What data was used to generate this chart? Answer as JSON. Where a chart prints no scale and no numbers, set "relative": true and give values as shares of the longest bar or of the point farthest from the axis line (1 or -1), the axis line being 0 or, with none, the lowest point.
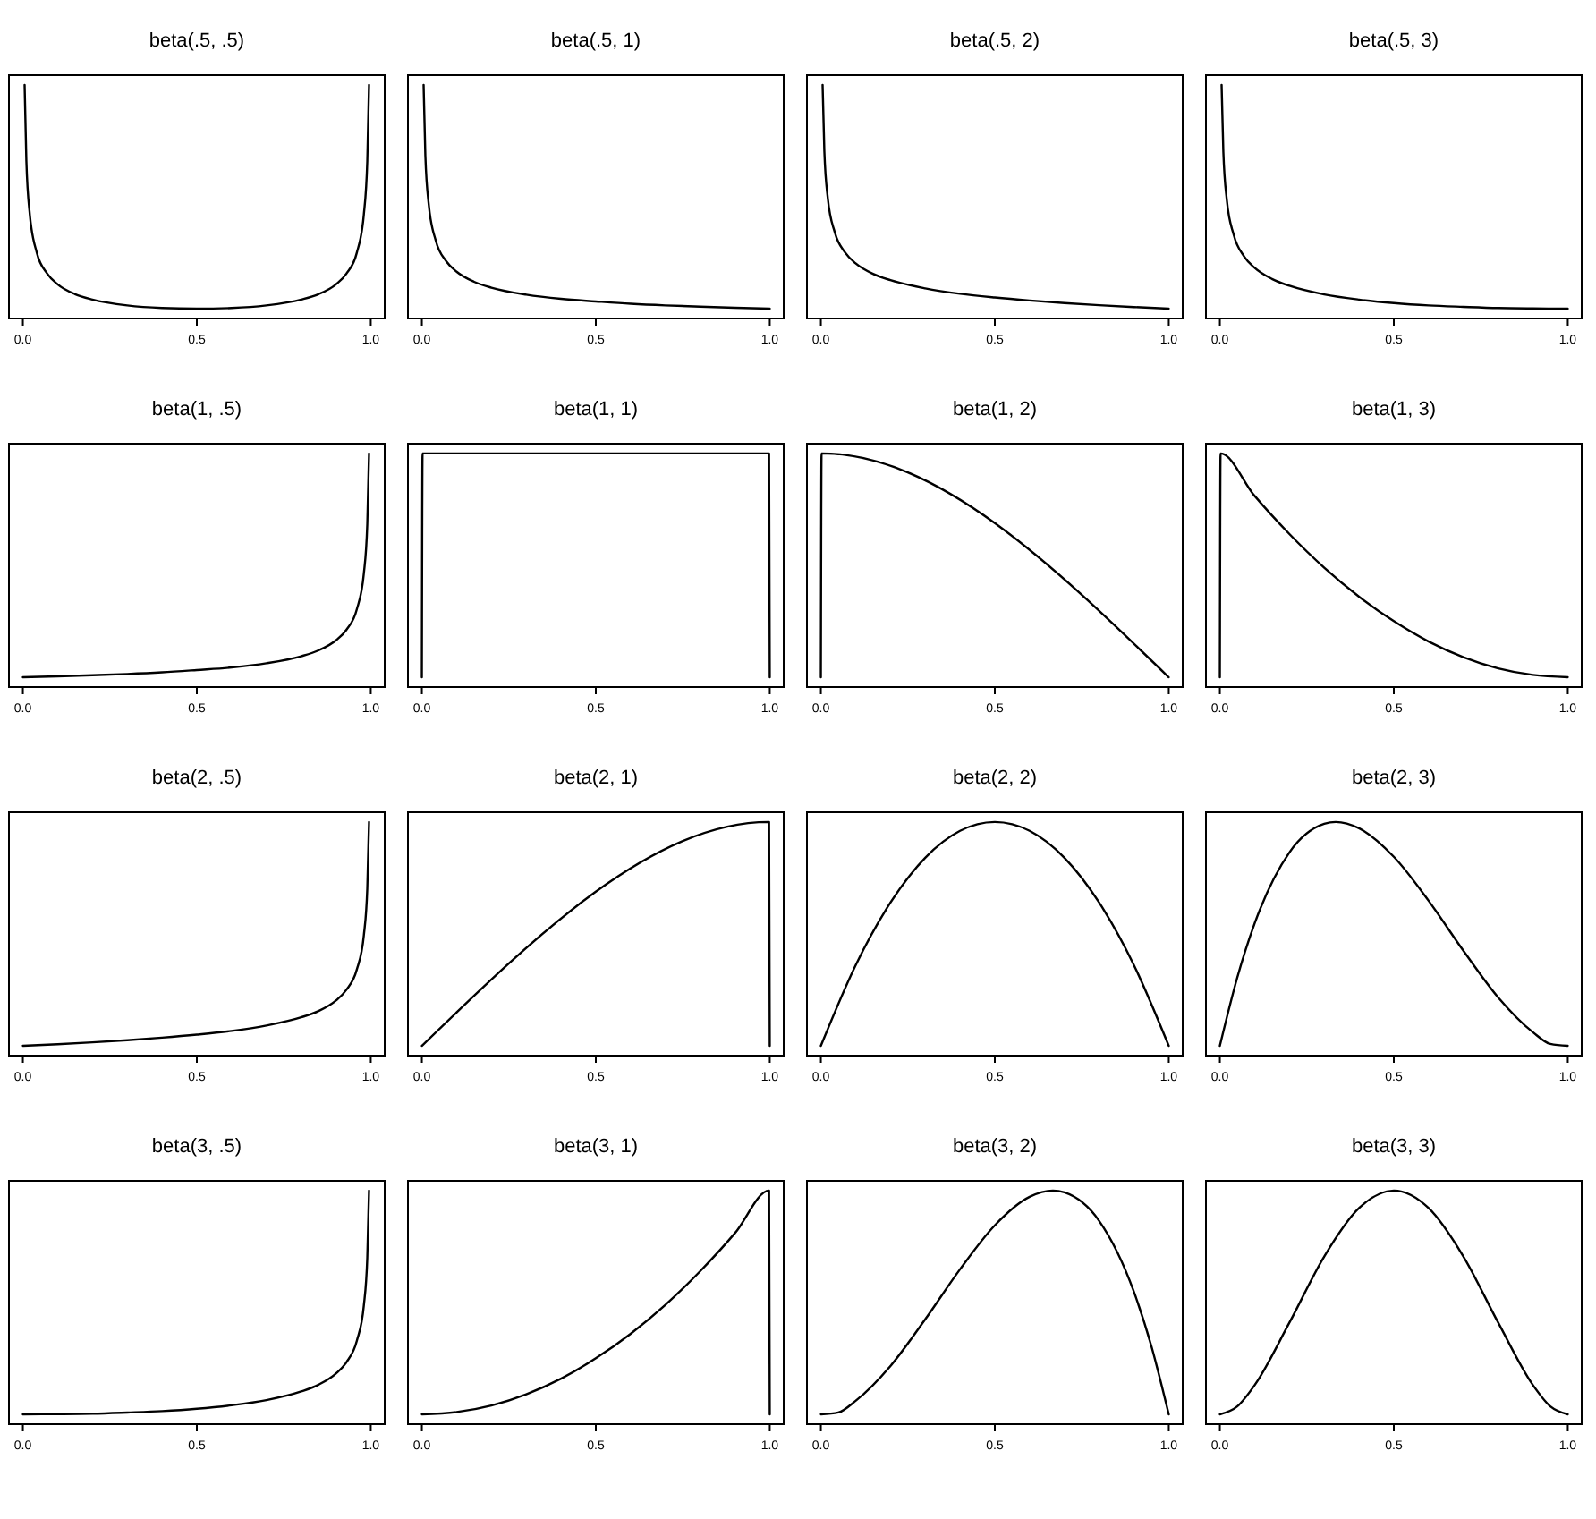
{
  "chart_data": [
    {
      "type": "line",
      "title": "beta(.5, .5)",
      "relative": true,
      "color": "#000000",
      "xlim": [
        -0.04,
        1.04
      ],
      "xticks": [
        {
          "value": 0,
          "label": "0.0"
        },
        {
          "value": 0.5,
          "label": "0.5"
        },
        {
          "value": 1,
          "label": "1.0"
        }
      ],
      "x": [
        0.005,
        0.01,
        0.02,
        0.04,
        0.07,
        0.1,
        0.15,
        0.2,
        0.3,
        0.4,
        0.5,
        0.6,
        0.7,
        0.8,
        0.85,
        0.9,
        0.93,
        0.96,
        0.98,
        0.99,
        0.995
      ],
      "values": [
        1,
        0.674,
        0.444,
        0.282,
        0.192,
        0.146,
        0.104,
        0.081,
        0.056,
        0.045,
        0.042,
        0.045,
        0.056,
        0.081,
        0.104,
        0.146,
        0.192,
        0.282,
        0.444,
        0.674,
        1
      ]
    },
    {
      "type": "line",
      "title": "beta(.5, 1)",
      "relative": true,
      "color": "#000000",
      "xlim": [
        -0.04,
        1.04
      ],
      "xticks": [
        {
          "value": 0,
          "label": "0.0"
        },
        {
          "value": 0.5,
          "label": "0.5"
        },
        {
          "value": 1,
          "label": "1.0"
        }
      ],
      "x": [
        0.005,
        0.01,
        0.02,
        0.04,
        0.07,
        0.1,
        0.15,
        0.2,
        0.3,
        0.4,
        0.5,
        0.6,
        0.7,
        0.8,
        0.9,
        1
      ],
      "values": [
        1,
        0.698,
        0.485,
        0.333,
        0.245,
        0.2,
        0.157,
        0.132,
        0.102,
        0.084,
        0.073,
        0.063,
        0.056,
        0.051,
        0.046,
        0.042
      ]
    },
    {
      "type": "line",
      "title": "beta(.5, 2)",
      "relative": true,
      "color": "#000000",
      "xlim": [
        -0.04,
        1.04
      ],
      "xticks": [
        {
          "value": 0,
          "label": "0.0"
        },
        {
          "value": 0.5,
          "label": "0.5"
        },
        {
          "value": 1,
          "label": "1.0"
        }
      ],
      "x": [
        0.005,
        0.01,
        0.02,
        0.04,
        0.07,
        0.1,
        0.15,
        0.2,
        0.3,
        0.4,
        0.5,
        0.6,
        0.7,
        0.8,
        0.9,
        1
      ],
      "values": [
        1,
        0.716,
        0.514,
        0.369,
        0.282,
        0.236,
        0.191,
        0.164,
        0.129,
        0.106,
        0.09,
        0.077,
        0.066,
        0.057,
        0.049,
        0.042
      ]
    },
    {
      "type": "line",
      "title": "beta(.5, 3)",
      "relative": true,
      "color": "#000000",
      "xlim": [
        -0.04,
        1.04
      ],
      "xticks": [
        {
          "value": 0,
          "label": "0.0"
        },
        {
          "value": 0.5,
          "label": "0.5"
        },
        {
          "value": 1,
          "label": "1.0"
        }
      ],
      "x": [
        0.005,
        0.01,
        0.02,
        0.04,
        0.07,
        0.1,
        0.15,
        0.2,
        0.3,
        0.4,
        0.5,
        0.6,
        0.7,
        0.8,
        0.9,
        1
      ],
      "values": [
        1,
        0.713,
        0.507,
        0.357,
        0.265,
        0.217,
        0.169,
        0.14,
        0.103,
        0.081,
        0.066,
        0.056,
        0.05,
        0.045,
        0.043,
        0.042
      ]
    },
    {
      "type": "line",
      "title": "beta(1, .5)",
      "relative": true,
      "color": "#000000",
      "xlim": [
        -0.04,
        1.04
      ],
      "xticks": [
        {
          "value": 0,
          "label": "0.0"
        },
        {
          "value": 0.5,
          "label": "0.5"
        },
        {
          "value": 1,
          "label": "1.0"
        }
      ],
      "x": [
        0,
        0.1,
        0.2,
        0.3,
        0.4,
        0.5,
        0.6,
        0.7,
        0.8,
        0.85,
        0.9,
        0.93,
        0.96,
        0.98,
        0.99,
        0.995
      ],
      "values": [
        0.042,
        0.046,
        0.051,
        0.056,
        0.063,
        0.073,
        0.084,
        0.102,
        0.132,
        0.157,
        0.2,
        0.245,
        0.333,
        0.485,
        0.698,
        1
      ]
    },
    {
      "type": "line",
      "title": "beta(1, 1)",
      "relative": true,
      "color": "#000000",
      "xlim": [
        -0.04,
        1.04
      ],
      "xticks": [
        {
          "value": 0,
          "label": "0.0"
        },
        {
          "value": 0.5,
          "label": "0.5"
        },
        {
          "value": 1,
          "label": "1.0"
        }
      ],
      "x": [
        0,
        0.002,
        0.5,
        0.998,
        1
      ],
      "values": [
        0.042,
        1,
        1,
        1,
        0.042
      ]
    },
    {
      "type": "line",
      "title": "beta(1, 2)",
      "relative": true,
      "color": "#000000",
      "xlim": [
        -0.04,
        1.04
      ],
      "xticks": [
        {
          "value": 0,
          "label": "0.0"
        },
        {
          "value": 0.5,
          "label": "0.5"
        },
        {
          "value": 1,
          "label": "1.0"
        }
      ],
      "x": [
        0,
        0.002,
        1
      ],
      "values": [
        0.042,
        1,
        0.042
      ]
    },
    {
      "type": "line",
      "title": "beta(1, 3)",
      "relative": true,
      "color": "#000000",
      "xlim": [
        -0.04,
        1.04
      ],
      "xticks": [
        {
          "value": 0,
          "label": "0.0"
        },
        {
          "value": 0.5,
          "label": "0.5"
        },
        {
          "value": 1,
          "label": "1.0"
        }
      ],
      "x": [
        0,
        0.002,
        0.1,
        0.2,
        0.3,
        0.4,
        0.5,
        0.6,
        0.7,
        0.8,
        0.9,
        1
      ],
      "values": [
        0.042,
        1,
        0.818,
        0.655,
        0.511,
        0.387,
        0.282,
        0.195,
        0.128,
        0.08,
        0.052,
        0.042
      ]
    },
    {
      "type": "line",
      "title": "beta(2, .5)",
      "relative": true,
      "color": "#000000",
      "xlim": [
        -0.04,
        1.04
      ],
      "xticks": [
        {
          "value": 0,
          "label": "0.0"
        },
        {
          "value": 0.5,
          "label": "0.5"
        },
        {
          "value": 1,
          "label": "1.0"
        }
      ],
      "x": [
        0,
        0.1,
        0.2,
        0.3,
        0.4,
        0.5,
        0.6,
        0.7,
        0.8,
        0.85,
        0.9,
        0.93,
        0.96,
        0.98,
        0.99,
        0.995
      ],
      "values": [
        0.042,
        0.049,
        0.057,
        0.066,
        0.077,
        0.09,
        0.106,
        0.129,
        0.164,
        0.191,
        0.236,
        0.282,
        0.369,
        0.514,
        0.716,
        1
      ]
    },
    {
      "type": "line",
      "title": "beta(2, 1)",
      "relative": true,
      "color": "#000000",
      "xlim": [
        -0.04,
        1.04
      ],
      "xticks": [
        {
          "value": 0,
          "label": "0.0"
        },
        {
          "value": 0.5,
          "label": "0.5"
        },
        {
          "value": 1,
          "label": "1.0"
        }
      ],
      "x": [
        0,
        0.998,
        1
      ],
      "values": [
        0.042,
        1,
        0.042
      ]
    },
    {
      "type": "line",
      "title": "beta(2, 2)",
      "relative": true,
      "color": "#000000",
      "xlim": [
        -0.04,
        1.04
      ],
      "xticks": [
        {
          "value": 0,
          "label": "0.0"
        },
        {
          "value": 0.5,
          "label": "0.5"
        },
        {
          "value": 1,
          "label": "1.0"
        }
      ],
      "x": [
        0,
        0.1,
        0.2,
        0.3,
        0.4,
        0.5,
        0.6,
        0.7,
        0.8,
        0.9,
        1
      ],
      "values": [
        0.042,
        0.387,
        0.655,
        0.847,
        0.962,
        1,
        0.962,
        0.847,
        0.655,
        0.387,
        0.042
      ]
    },
    {
      "type": "line",
      "title": "beta(2, 3)",
      "relative": true,
      "color": "#000000",
      "xlim": [
        -0.04,
        1.04
      ],
      "xticks": [
        {
          "value": 0,
          "label": "0.0"
        },
        {
          "value": 0.5,
          "label": "0.5"
        },
        {
          "value": 1,
          "label": "1.0"
        }
      ],
      "x": [
        0,
        0.05,
        0.1,
        0.2,
        0.3,
        0.333,
        0.4,
        0.5,
        0.6,
        0.7,
        0.8,
        0.9,
        0.95,
        1
      ],
      "values": [
        0.042,
        0.334,
        0.566,
        0.87,
        0.992,
        1,
        0.973,
        0.851,
        0.663,
        0.449,
        0.249,
        0.1,
        0.05,
        0.042
      ]
    },
    {
      "type": "line",
      "title": "beta(3, .5)",
      "relative": true,
      "color": "#000000",
      "xlim": [
        -0.04,
        1.04
      ],
      "xticks": [
        {
          "value": 0,
          "label": "0.0"
        },
        {
          "value": 0.5,
          "label": "0.5"
        },
        {
          "value": 1,
          "label": "1.0"
        }
      ],
      "x": [
        0,
        0.1,
        0.2,
        0.3,
        0.4,
        0.5,
        0.6,
        0.7,
        0.8,
        0.85,
        0.9,
        0.93,
        0.96,
        0.98,
        0.99,
        0.995
      ],
      "values": [
        0.042,
        0.043,
        0.045,
        0.05,
        0.056,
        0.066,
        0.081,
        0.103,
        0.14,
        0.169,
        0.217,
        0.265,
        0.357,
        0.507,
        0.713,
        1
      ]
    },
    {
      "type": "line",
      "title": "beta(3, 1)",
      "relative": true,
      "color": "#000000",
      "xlim": [
        -0.04,
        1.04
      ],
      "xticks": [
        {
          "value": 0,
          "label": "0.0"
        },
        {
          "value": 0.5,
          "label": "0.5"
        },
        {
          "value": 1,
          "label": "1.0"
        }
      ],
      "x": [
        0,
        0.1,
        0.2,
        0.3,
        0.4,
        0.5,
        0.6,
        0.7,
        0.8,
        0.9,
        0.998,
        1
      ],
      "values": [
        0.042,
        0.052,
        0.08,
        0.128,
        0.195,
        0.282,
        0.387,
        0.511,
        0.655,
        0.818,
        1,
        0.042
      ]
    },
    {
      "type": "line",
      "title": "beta(3, 2)",
      "relative": true,
      "color": "#000000",
      "xlim": [
        -0.04,
        1.04
      ],
      "xticks": [
        {
          "value": 0,
          "label": "0.0"
        },
        {
          "value": 0.5,
          "label": "0.5"
        },
        {
          "value": 1,
          "label": "1.0"
        }
      ],
      "x": [
        0,
        0.05,
        0.1,
        0.2,
        0.3,
        0.4,
        0.5,
        0.6,
        0.667,
        0.7,
        0.8,
        0.9,
        0.95,
        1
      ],
      "values": [
        0.042,
        0.05,
        0.1,
        0.249,
        0.449,
        0.663,
        0.851,
        0.973,
        1,
        0.992,
        0.87,
        0.566,
        0.334,
        0.042
      ]
    },
    {
      "type": "line",
      "title": "beta(3, 3)",
      "relative": true,
      "color": "#000000",
      "xlim": [
        -0.04,
        1.04
      ],
      "xticks": [
        {
          "value": 0,
          "label": "0.0"
        },
        {
          "value": 0.5,
          "label": "0.5"
        },
        {
          "value": 1,
          "label": "1.0"
        }
      ],
      "x": [
        0,
        0.05,
        0.1,
        0.2,
        0.3,
        0.4,
        0.5,
        0.6,
        0.7,
        0.8,
        0.9,
        0.95,
        1
      ],
      "values": [
        0.042,
        0.076,
        0.167,
        0.435,
        0.718,
        0.925,
        1,
        0.925,
        0.718,
        0.435,
        0.167,
        0.076,
        0.042
      ]
    }
  ]
}
